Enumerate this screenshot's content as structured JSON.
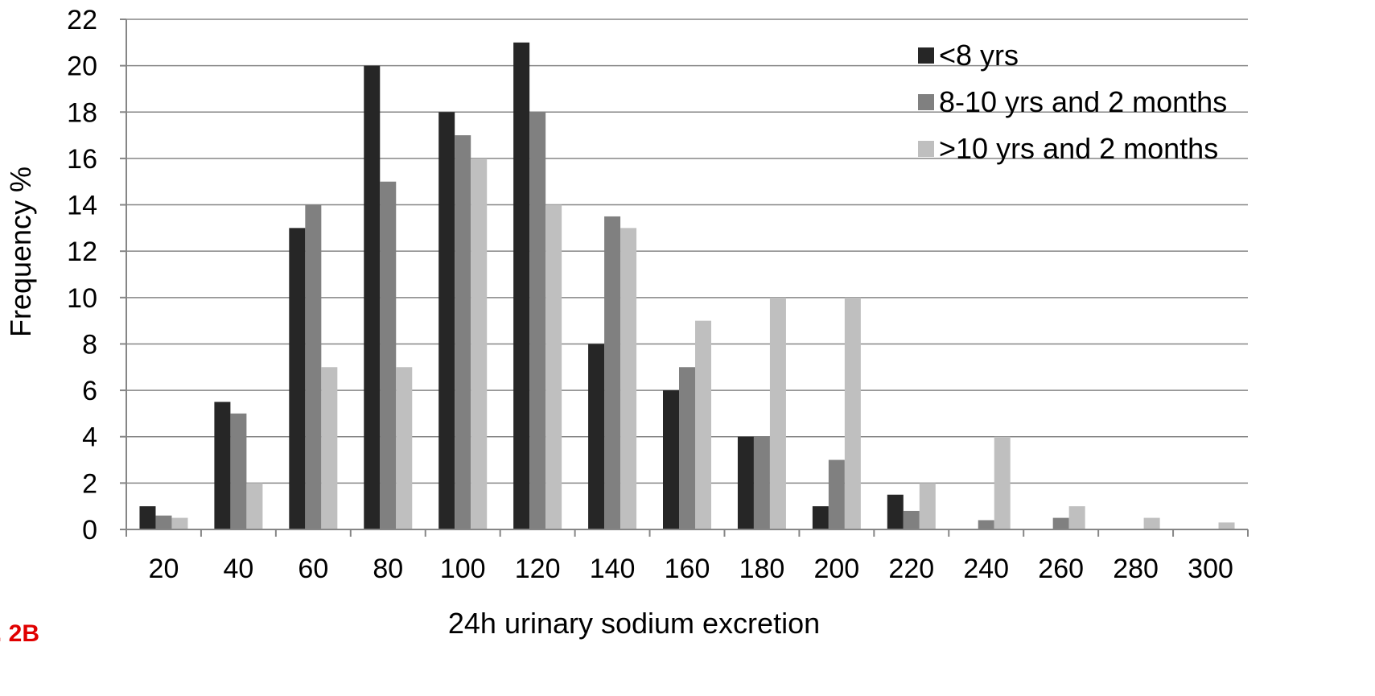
{
  "figure_label": ". 2B",
  "chart_data": {
    "type": "bar",
    "title": "",
    "xlabel": "24h urinary sodium excretion",
    "ylabel": "Frequency  %",
    "ylim": [
      0,
      22
    ],
    "yticks": [
      0,
      2,
      4,
      6,
      8,
      10,
      12,
      14,
      16,
      18,
      20,
      22
    ],
    "grid": "horizontal",
    "legend_position": "top-right",
    "categories": [
      "20",
      "40",
      "60",
      "80",
      "100",
      "120",
      "140",
      "160",
      "180",
      "200",
      "220",
      "240",
      "260",
      "280",
      "300"
    ],
    "series": [
      {
        "name": "<8 yrs",
        "color": "#262626",
        "values": [
          1,
          5.5,
          13,
          20,
          18,
          21,
          8,
          6,
          4,
          1,
          1.5,
          0,
          0,
          0,
          0
        ]
      },
      {
        "name": "8-10 yrs and 2 months",
        "color": "#808080",
        "values": [
          0.6,
          5,
          14,
          15,
          17,
          18,
          13.5,
          7,
          4,
          3,
          0.8,
          0.4,
          0.5,
          0,
          0
        ]
      },
      {
        "name": ">10 yrs and 2 months",
        "color": "#bfbfbf",
        "values": [
          0.5,
          2,
          7,
          7,
          16,
          14,
          13,
          9,
          10,
          10,
          2,
          4,
          1,
          0.5,
          0.3
        ]
      }
    ]
  }
}
